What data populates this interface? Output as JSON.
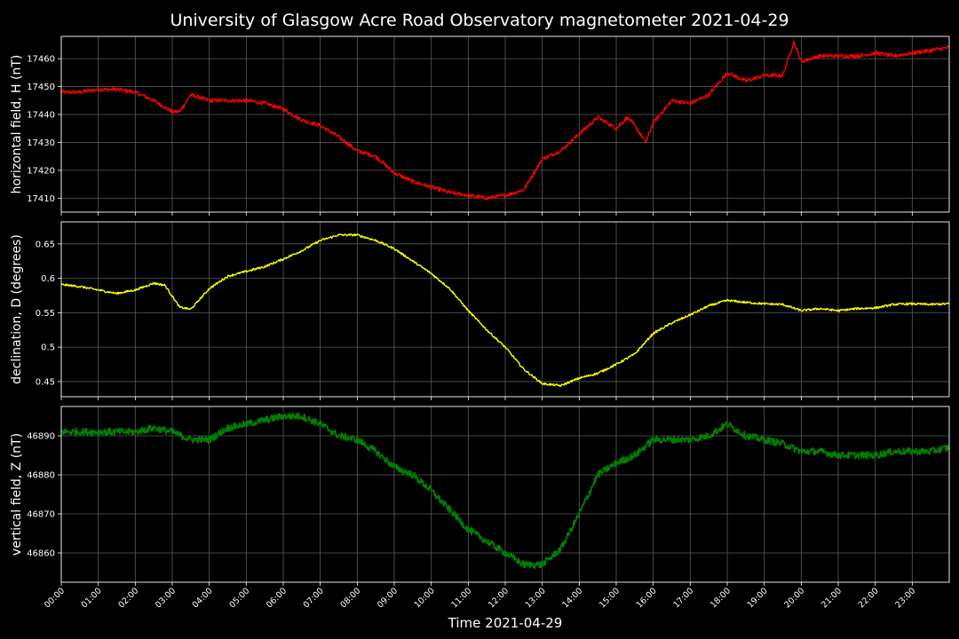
{
  "title": "University of Glasgow Acre Road Observatory magnetometer 2021-04-29",
  "chart_data": {
    "type": "line",
    "title": "University of Glasgow Acre Road Observatory magnetometer 2021-04-29",
    "xlabel": "Time 2021-04-29",
    "x_unit": "hours",
    "xlim": [
      0,
      24
    ],
    "x_ticks": [
      "00:00",
      "01:00",
      "02:00",
      "03:00",
      "04:00",
      "05:00",
      "06:00",
      "07:00",
      "08:00",
      "09:00",
      "10:00",
      "11:00",
      "12:00",
      "13:00",
      "14:00",
      "15:00",
      "16:00",
      "17:00",
      "18:00",
      "19:00",
      "20:00",
      "21:00",
      "22:00",
      "23:00"
    ],
    "grid": true,
    "panels": [
      {
        "name": "H",
        "ylabel": "horizontal field, H (nT)",
        "color": "#ff0000",
        "ylim": [
          17405,
          17468
        ],
        "yticks": [
          17410,
          17420,
          17430,
          17440,
          17450,
          17460
        ],
        "x": [
          0,
          0.5,
          1,
          1.5,
          2,
          2.5,
          3,
          3.2,
          3.5,
          4,
          4.5,
          5,
          5.5,
          6,
          6.5,
          7,
          7.5,
          8,
          8.5,
          9,
          9.5,
          10,
          10.5,
          11,
          11.5,
          12,
          12.5,
          13,
          13.5,
          14,
          14.5,
          15,
          15.3,
          15.5,
          15.8,
          16,
          16.5,
          17,
          17.5,
          18,
          18.5,
          19,
          19.5,
          19.8,
          20,
          20.5,
          21,
          21.5,
          22,
          22.5,
          23,
          23.5,
          24
        ],
        "values": [
          17448,
          17448,
          17449,
          17449,
          17448,
          17445,
          17441,
          17441,
          17447,
          17445,
          17445,
          17445,
          17444,
          17442,
          17438,
          17436,
          17432,
          17427,
          17425,
          17419,
          17416,
          17414,
          17412,
          17411,
          17410,
          17411,
          17413,
          17424,
          17427,
          17433,
          17439,
          17435,
          17439,
          17436,
          17430,
          17437,
          17445,
          17444,
          17447,
          17455,
          17452,
          17454,
          17454,
          17466,
          17459,
          17461,
          17461,
          17461,
          17462,
          17461,
          17462,
          17463,
          17464
        ],
        "noise": 0.7
      },
      {
        "name": "D",
        "ylabel": "declination, D (degrees)",
        "color": "#ffff00",
        "ylim": [
          0.428,
          0.682
        ],
        "yticks": [
          0.45,
          0.5,
          0.55,
          0.6,
          0.65
        ],
        "x": [
          0,
          0.5,
          1,
          1.5,
          2,
          2.5,
          2.8,
          3.2,
          3.5,
          4,
          4.5,
          5,
          5.5,
          6,
          6.5,
          7,
          7.5,
          8,
          8.5,
          9,
          9.5,
          10,
          10.5,
          11,
          11.5,
          12,
          12.5,
          13,
          13.5,
          14,
          14.5,
          15,
          15.5,
          16,
          16.5,
          17,
          17.5,
          18,
          18.5,
          19,
          19.5,
          20,
          20.5,
          21,
          21.5,
          22,
          22.5,
          23,
          23.5,
          24
        ],
        "values": [
          0.591,
          0.588,
          0.583,
          0.578,
          0.583,
          0.593,
          0.59,
          0.558,
          0.555,
          0.585,
          0.603,
          0.61,
          0.617,
          0.628,
          0.64,
          0.655,
          0.663,
          0.663,
          0.655,
          0.643,
          0.625,
          0.607,
          0.585,
          0.553,
          0.525,
          0.5,
          0.468,
          0.447,
          0.444,
          0.455,
          0.462,
          0.475,
          0.49,
          0.52,
          0.535,
          0.547,
          0.56,
          0.568,
          0.565,
          0.563,
          0.562,
          0.553,
          0.556,
          0.553,
          0.556,
          0.557,
          0.562,
          0.563,
          0.562,
          0.563
        ],
        "noise": 0.0015
      },
      {
        "name": "Z",
        "ylabel": "vertical field, Z (nT)",
        "color": "#008000",
        "ylim": [
          46852.5,
          46897.5
        ],
        "yticks": [
          46860,
          46870,
          46880,
          46890
        ],
        "x": [
          0,
          0.5,
          1,
          1.5,
          2,
          2.5,
          3,
          3.5,
          4,
          4.5,
          5,
          5.5,
          6,
          6.5,
          7,
          7.5,
          8,
          8.5,
          9,
          9.5,
          10,
          10.5,
          11,
          11.5,
          12,
          12.5,
          13,
          13.5,
          14,
          14.5,
          15,
          15.5,
          16,
          16.5,
          17,
          17.5,
          18,
          18.5,
          19,
          19.5,
          20,
          20.5,
          21,
          21.5,
          22,
          22.5,
          23,
          23.5,
          24
        ],
        "values": [
          46891,
          46891,
          46891,
          46891,
          46891,
          46892,
          46891,
          46889,
          46889,
          46892,
          46893,
          46894,
          46895,
          46895,
          46893,
          46890,
          46889,
          46886,
          46882,
          46880,
          46876,
          46871,
          46866,
          46863,
          46860,
          46857,
          46857,
          46861,
          46870,
          46880,
          46883,
          46885,
          46889,
          46889,
          46889,
          46890,
          46893,
          46890,
          46889,
          46888,
          46886,
          46886,
          46885,
          46885,
          46885,
          46886,
          46886,
          46886,
          46887
        ],
        "noise": 0.9
      }
    ]
  }
}
